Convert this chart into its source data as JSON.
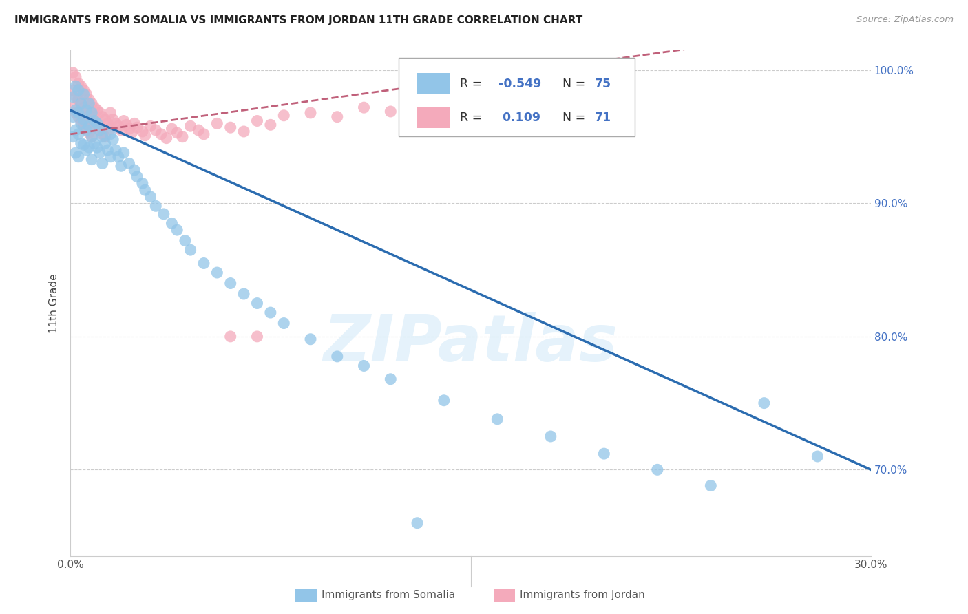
{
  "title": "IMMIGRANTS FROM SOMALIA VS IMMIGRANTS FROM JORDAN 11TH GRADE CORRELATION CHART",
  "source": "Source: ZipAtlas.com",
  "ylabel": "11th Grade",
  "xlim": [
    0.0,
    0.3
  ],
  "ylim": [
    0.635,
    1.015
  ],
  "y_ticks": [
    0.7,
    0.8,
    0.9,
    1.0
  ],
  "y_tick_labels": [
    "70.0%",
    "80.0%",
    "90.0%",
    "100.0%"
  ],
  "x_tick_positions": [
    0.0,
    0.05,
    0.1,
    0.15,
    0.2,
    0.25,
    0.3
  ],
  "x_tick_labels": [
    "0.0%",
    "",
    "",
    "",
    "",
    "",
    "30.0%"
  ],
  "grid_color": "#cccccc",
  "background_color": "#ffffff",
  "somalia_color": "#92C5E8",
  "jordan_color": "#F4AABB",
  "somalia_R": -0.549,
  "somalia_N": 75,
  "jordan_R": 0.109,
  "jordan_N": 71,
  "somalia_label": "Immigrants from Somalia",
  "jordan_label": "Immigrants from Jordan",
  "trend_blue": "#2B6CB0",
  "trend_pink": "#C0607A",
  "watermark": "ZIPatlas",
  "somalia_x": [
    0.001,
    0.001,
    0.001,
    0.002,
    0.002,
    0.002,
    0.002,
    0.003,
    0.003,
    0.003,
    0.003,
    0.004,
    0.004,
    0.004,
    0.005,
    0.005,
    0.005,
    0.006,
    0.006,
    0.006,
    0.007,
    0.007,
    0.007,
    0.008,
    0.008,
    0.008,
    0.009,
    0.009,
    0.01,
    0.01,
    0.011,
    0.011,
    0.012,
    0.012,
    0.013,
    0.014,
    0.015,
    0.015,
    0.016,
    0.017,
    0.018,
    0.019,
    0.02,
    0.022,
    0.024,
    0.025,
    0.027,
    0.028,
    0.03,
    0.032,
    0.035,
    0.038,
    0.04,
    0.043,
    0.045,
    0.05,
    0.055,
    0.06,
    0.065,
    0.07,
    0.075,
    0.08,
    0.09,
    0.1,
    0.11,
    0.12,
    0.14,
    0.16,
    0.18,
    0.2,
    0.22,
    0.24,
    0.26,
    0.28,
    0.13
  ],
  "somalia_y": [
    0.98,
    0.965,
    0.95,
    0.988,
    0.97,
    0.955,
    0.938,
    0.985,
    0.968,
    0.952,
    0.935,
    0.975,
    0.96,
    0.945,
    0.982,
    0.963,
    0.944,
    0.97,
    0.955,
    0.94,
    0.975,
    0.958,
    0.942,
    0.968,
    0.95,
    0.933,
    0.962,
    0.945,
    0.96,
    0.942,
    0.955,
    0.938,
    0.95,
    0.93,
    0.945,
    0.94,
    0.952,
    0.935,
    0.948,
    0.94,
    0.935,
    0.928,
    0.938,
    0.93,
    0.925,
    0.92,
    0.915,
    0.91,
    0.905,
    0.898,
    0.892,
    0.885,
    0.88,
    0.872,
    0.865,
    0.855,
    0.848,
    0.84,
    0.832,
    0.825,
    0.818,
    0.81,
    0.798,
    0.785,
    0.778,
    0.768,
    0.752,
    0.738,
    0.725,
    0.712,
    0.7,
    0.688,
    0.75,
    0.71,
    0.66
  ],
  "jordan_x": [
    0.001,
    0.001,
    0.001,
    0.002,
    0.002,
    0.002,
    0.003,
    0.003,
    0.003,
    0.004,
    0.004,
    0.004,
    0.005,
    0.005,
    0.005,
    0.006,
    0.006,
    0.006,
    0.007,
    0.007,
    0.007,
    0.008,
    0.008,
    0.008,
    0.009,
    0.009,
    0.01,
    0.01,
    0.011,
    0.011,
    0.012,
    0.012,
    0.013,
    0.013,
    0.014,
    0.015,
    0.015,
    0.016,
    0.017,
    0.018,
    0.019,
    0.02,
    0.021,
    0.022,
    0.023,
    0.024,
    0.025,
    0.027,
    0.028,
    0.03,
    0.032,
    0.034,
    0.036,
    0.038,
    0.04,
    0.042,
    0.045,
    0.048,
    0.05,
    0.055,
    0.06,
    0.065,
    0.07,
    0.075,
    0.08,
    0.09,
    0.1,
    0.11,
    0.12,
    0.06,
    0.07
  ],
  "jordan_y": [
    0.998,
    0.985,
    0.972,
    0.995,
    0.98,
    0.968,
    0.99,
    0.978,
    0.965,
    0.988,
    0.975,
    0.962,
    0.985,
    0.972,
    0.958,
    0.982,
    0.97,
    0.956,
    0.978,
    0.966,
    0.953,
    0.975,
    0.963,
    0.95,
    0.972,
    0.96,
    0.97,
    0.958,
    0.968,
    0.955,
    0.965,
    0.952,
    0.963,
    0.95,
    0.96,
    0.968,
    0.956,
    0.963,
    0.96,
    0.958,
    0.955,
    0.962,
    0.959,
    0.956,
    0.953,
    0.96,
    0.957,
    0.954,
    0.951,
    0.958,
    0.955,
    0.952,
    0.949,
    0.956,
    0.953,
    0.95,
    0.958,
    0.955,
    0.952,
    0.96,
    0.957,
    0.954,
    0.962,
    0.959,
    0.966,
    0.968,
    0.965,
    0.972,
    0.969,
    0.8,
    0.8
  ]
}
